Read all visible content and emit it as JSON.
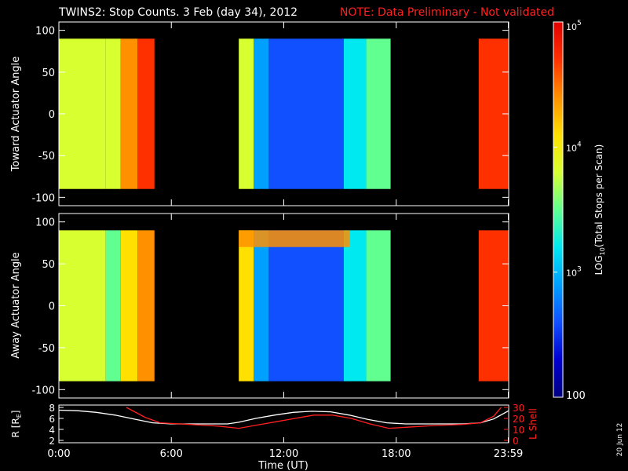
{
  "title": "TWINS2: Stop Counts.  3 Feb (day  34), 2012",
  "note": "NOTE: Data Preliminary - Not validated",
  "date_stamp": "20 Jun 12",
  "colors": {
    "background": "#000000",
    "axes": "#ffffff",
    "note": "#ff2020",
    "lshell": "#ff2020",
    "radius": "#ffffff"
  },
  "chart_data": [
    {
      "type": "heatmap",
      "ylabel": "Toward Actuator Angle",
      "ylim": [
        -110,
        110
      ],
      "yticks": [
        100,
        50,
        0,
        -50,
        -100
      ],
      "angle_range": [
        -90,
        90
      ],
      "x_unit": "hours UT",
      "data_intervals": [
        [
          0,
          5.1
        ],
        [
          9.6,
          17.7
        ],
        [
          22.4,
          24
        ]
      ],
      "color_segments": [
        {
          "x": [
            0,
            2.5
          ],
          "log10_counts": 3.9
        },
        {
          "x": [
            2.5,
            3.3
          ],
          "log10_counts": 3.7
        },
        {
          "x": [
            3.3,
            4.2
          ],
          "log10_counts": 4.3
        },
        {
          "x": [
            4.2,
            5.1
          ],
          "log10_counts": 4.6
        },
        {
          "x": [
            9.6,
            10.4
          ],
          "log10_counts": 3.8
        },
        {
          "x": [
            10.4,
            11.2
          ],
          "log10_counts": 3.0
        },
        {
          "x": [
            11.2,
            15.2
          ],
          "log10_counts": 2.7
        },
        {
          "x": [
            15.2,
            16.4
          ],
          "log10_counts": 3.1
        },
        {
          "x": [
            16.4,
            17.7
          ],
          "log10_counts": 3.6
        },
        {
          "x": [
            22.4,
            24
          ],
          "log10_counts": 4.6
        }
      ]
    },
    {
      "type": "heatmap",
      "ylabel": "Away Actuator Angle",
      "ylim": [
        -110,
        110
      ],
      "yticks": [
        100,
        50,
        0,
        -50,
        -100
      ],
      "angle_range": [
        -90,
        90
      ],
      "x_unit": "hours UT",
      "data_intervals": [
        [
          0,
          5.1
        ],
        [
          9.6,
          17.7
        ],
        [
          22.4,
          24
        ]
      ],
      "color_segments": [
        {
          "x": [
            0,
            2.5
          ],
          "log10_counts": 3.8
        },
        {
          "x": [
            2.5,
            3.3
          ],
          "log10_counts": 3.6
        },
        {
          "x": [
            3.3,
            4.2
          ],
          "log10_counts": 4.2
        },
        {
          "x": [
            4.2,
            5.1
          ],
          "log10_counts": 4.5
        },
        {
          "x": [
            9.6,
            10.4
          ],
          "log10_counts": 4.0
        },
        {
          "x": [
            10.4,
            11.2
          ],
          "log10_counts": 3.0
        },
        {
          "x": [
            11.2,
            15.2
          ],
          "log10_counts": 2.7
        },
        {
          "x": [
            15.2,
            16.4
          ],
          "log10_counts": 3.1
        },
        {
          "x": [
            16.4,
            17.7
          ],
          "log10_counts": 3.6
        },
        {
          "x": [
            22.4,
            24
          ],
          "log10_counts": 4.6
        }
      ],
      "band_top": {
        "x": [
          9.6,
          15.5
        ],
        "angle_range": [
          70,
          90
        ],
        "log10_counts": 4.4
      }
    },
    {
      "type": "line",
      "ylabel": "R [R",
      "ylabel_sub": "E",
      "ylabel_close": "]",
      "ylabel_right": "L Shell",
      "ylim_left": [
        2,
        8
      ],
      "ylim_right": [
        0,
        30
      ],
      "yticks_left": [
        "8",
        "6",
        "4",
        "2"
      ],
      "yticks_right": [
        "30",
        "20",
        "10",
        "0"
      ],
      "xlabel": "Time (UT)",
      "xlim": [
        0,
        24
      ],
      "xtick_values": [
        0,
        6,
        12,
        18,
        23.98
      ],
      "xtick_labels": [
        "0:00",
        "6:00",
        "12:00",
        "18:00",
        "23:59"
      ],
      "series": [
        {
          "name": "R",
          "axis": "left",
          "x": [
            0,
            1,
            2,
            3,
            4,
            5,
            6,
            7,
            8,
            9,
            9.6,
            10.5,
            11.5,
            12.5,
            13.5,
            14.5,
            15.5,
            16.5,
            17.5,
            18.5,
            19.5,
            20.5,
            21.5,
            22.5,
            23.2,
            24
          ],
          "y": [
            7.5,
            7.4,
            7.1,
            6.6,
            5.9,
            5.2,
            5.0,
            5.0,
            5.0,
            5.0,
            5.3,
            6.0,
            6.6,
            7.1,
            7.3,
            7.2,
            6.6,
            5.8,
            5.2,
            5.0,
            5.0,
            5.0,
            5.0,
            5.2,
            5.9,
            7.4
          ]
        },
        {
          "name": "L Shell",
          "axis": "right",
          "x": [
            3.6,
            4.6,
            5.4,
            7,
            8.5,
            9.6,
            10.6,
            11.6,
            12.6,
            13.6,
            14.6,
            15.6,
            16.6,
            17.6,
            18.6,
            20,
            21.5,
            22.5,
            23.2,
            23.6
          ],
          "y": [
            30,
            21,
            16,
            14.5,
            13,
            11,
            14,
            17,
            20,
            23,
            23,
            20,
            15,
            11,
            12,
            13.5,
            14.5,
            16,
            22,
            30
          ]
        }
      ]
    },
    {
      "type": "colorbar",
      "label_main": "LOG",
      "label_sub": "10",
      "label_rest": "(Total Stops per Scan)",
      "scale": "log",
      "range": [
        100,
        100000
      ],
      "tick_labels": [
        {
          "value": 100,
          "base": "100",
          "exp": ""
        },
        {
          "value": 1000,
          "base": "10",
          "exp": "3"
        },
        {
          "value": 10000,
          "base": "10",
          "exp": "4"
        },
        {
          "value": 100000,
          "base": "10",
          "exp": "5"
        }
      ],
      "colormap": [
        "#000080",
        "#0000d0",
        "#1050ff",
        "#00a0ff",
        "#00e8f0",
        "#60ff90",
        "#d8ff30",
        "#ffe000",
        "#ff9000",
        "#ff3000",
        "#e00000"
      ]
    }
  ]
}
